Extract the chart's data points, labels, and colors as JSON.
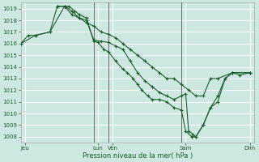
{
  "background_color": "#cce8e0",
  "grid_color": "#ffffff",
  "line_color": "#1a5e28",
  "ylim": [
    1007.5,
    1019.5
  ],
  "yticks": [
    1008,
    1009,
    1010,
    1011,
    1012,
    1013,
    1014,
    1015,
    1016,
    1017,
    1018,
    1019
  ],
  "xlim": [
    0,
    16
  ],
  "xtick_labels": [
    "Jeu",
    "Lun",
    "Ven",
    "Sam",
    "Dim"
  ],
  "xtick_positions": [
    0.3,
    5.3,
    6.3,
    11.3,
    15.7
  ],
  "xlabel": "Pression niveau de la mer( hPa )",
  "vlines": [
    5.0,
    6.0,
    11.0
  ],
  "series": [
    [
      [
        0.0,
        1016.0
      ],
      [
        0.5,
        1016.7
      ],
      [
        1.0,
        1016.7
      ],
      [
        2.0,
        1017.0
      ],
      [
        3.0,
        1019.2
      ],
      [
        3.3,
        1019.2
      ],
      [
        3.7,
        1018.8
      ],
      [
        4.0,
        1018.5
      ],
      [
        4.5,
        1018.2
      ],
      [
        5.0,
        1016.2
      ],
      [
        5.3,
        1016.1
      ],
      [
        5.7,
        1015.5
      ],
      [
        6.0,
        1015.3
      ],
      [
        6.5,
        1014.5
      ],
      [
        7.0,
        1013.8
      ],
      [
        7.3,
        1013.5
      ],
      [
        7.7,
        1013.0
      ],
      [
        8.0,
        1012.5
      ],
      [
        8.3,
        1012.0
      ],
      [
        8.7,
        1011.5
      ],
      [
        9.0,
        1011.2
      ],
      [
        9.5,
        1011.2
      ],
      [
        10.0,
        1011.0
      ],
      [
        10.5,
        1010.5
      ],
      [
        11.0,
        1010.3
      ],
      [
        11.3,
        1008.5
      ],
      [
        11.7,
        1008.0
      ],
      [
        12.0,
        1008.0
      ],
      [
        12.5,
        1009.0
      ],
      [
        13.0,
        1010.5
      ],
      [
        13.5,
        1011.5
      ],
      [
        14.0,
        1013.0
      ],
      [
        14.5,
        1013.5
      ],
      [
        15.0,
        1013.3
      ],
      [
        15.7,
        1013.5
      ]
    ],
    [
      [
        0.0,
        1016.0
      ],
      [
        1.0,
        1016.7
      ],
      [
        2.0,
        1017.0
      ],
      [
        2.5,
        1019.2
      ],
      [
        3.0,
        1019.2
      ],
      [
        3.5,
        1018.5
      ],
      [
        4.0,
        1018.2
      ],
      [
        4.5,
        1018.0
      ],
      [
        5.0,
        1016.3
      ],
      [
        5.5,
        1016.2
      ],
      [
        6.0,
        1016.1
      ],
      [
        6.5,
        1015.8
      ],
      [
        7.0,
        1015.5
      ],
      [
        7.5,
        1014.5
      ],
      [
        8.0,
        1013.5
      ],
      [
        8.5,
        1012.8
      ],
      [
        9.0,
        1012.3
      ],
      [
        9.5,
        1011.8
      ],
      [
        10.0,
        1011.5
      ],
      [
        10.5,
        1011.2
      ],
      [
        11.0,
        1011.5
      ],
      [
        11.3,
        1011.7
      ],
      [
        11.5,
        1008.5
      ],
      [
        11.8,
        1008.2
      ],
      [
        12.0,
        1008.0
      ],
      [
        12.5,
        1009.0
      ],
      [
        13.0,
        1010.5
      ],
      [
        13.5,
        1011.0
      ],
      [
        14.0,
        1013.0
      ],
      [
        14.5,
        1013.5
      ],
      [
        15.7,
        1013.5
      ]
    ],
    [
      [
        2.5,
        1019.2
      ],
      [
        3.0,
        1019.2
      ],
      [
        3.5,
        1018.8
      ],
      [
        4.0,
        1018.2
      ],
      [
        4.5,
        1017.8
      ],
      [
        5.0,
        1017.5
      ],
      [
        5.5,
        1017.0
      ],
      [
        6.0,
        1016.8
      ],
      [
        6.5,
        1016.5
      ],
      [
        7.0,
        1016.0
      ],
      [
        7.5,
        1015.5
      ],
      [
        8.0,
        1015.0
      ],
      [
        8.5,
        1014.5
      ],
      [
        9.0,
        1014.0
      ],
      [
        9.5,
        1013.5
      ],
      [
        10.0,
        1013.0
      ],
      [
        10.5,
        1013.0
      ],
      [
        11.0,
        1012.5
      ],
      [
        11.5,
        1012.0
      ],
      [
        12.0,
        1011.5
      ],
      [
        12.5,
        1011.5
      ],
      [
        13.0,
        1013.0
      ],
      [
        13.5,
        1013.0
      ],
      [
        14.5,
        1013.5
      ],
      [
        15.7,
        1013.5
      ]
    ]
  ]
}
